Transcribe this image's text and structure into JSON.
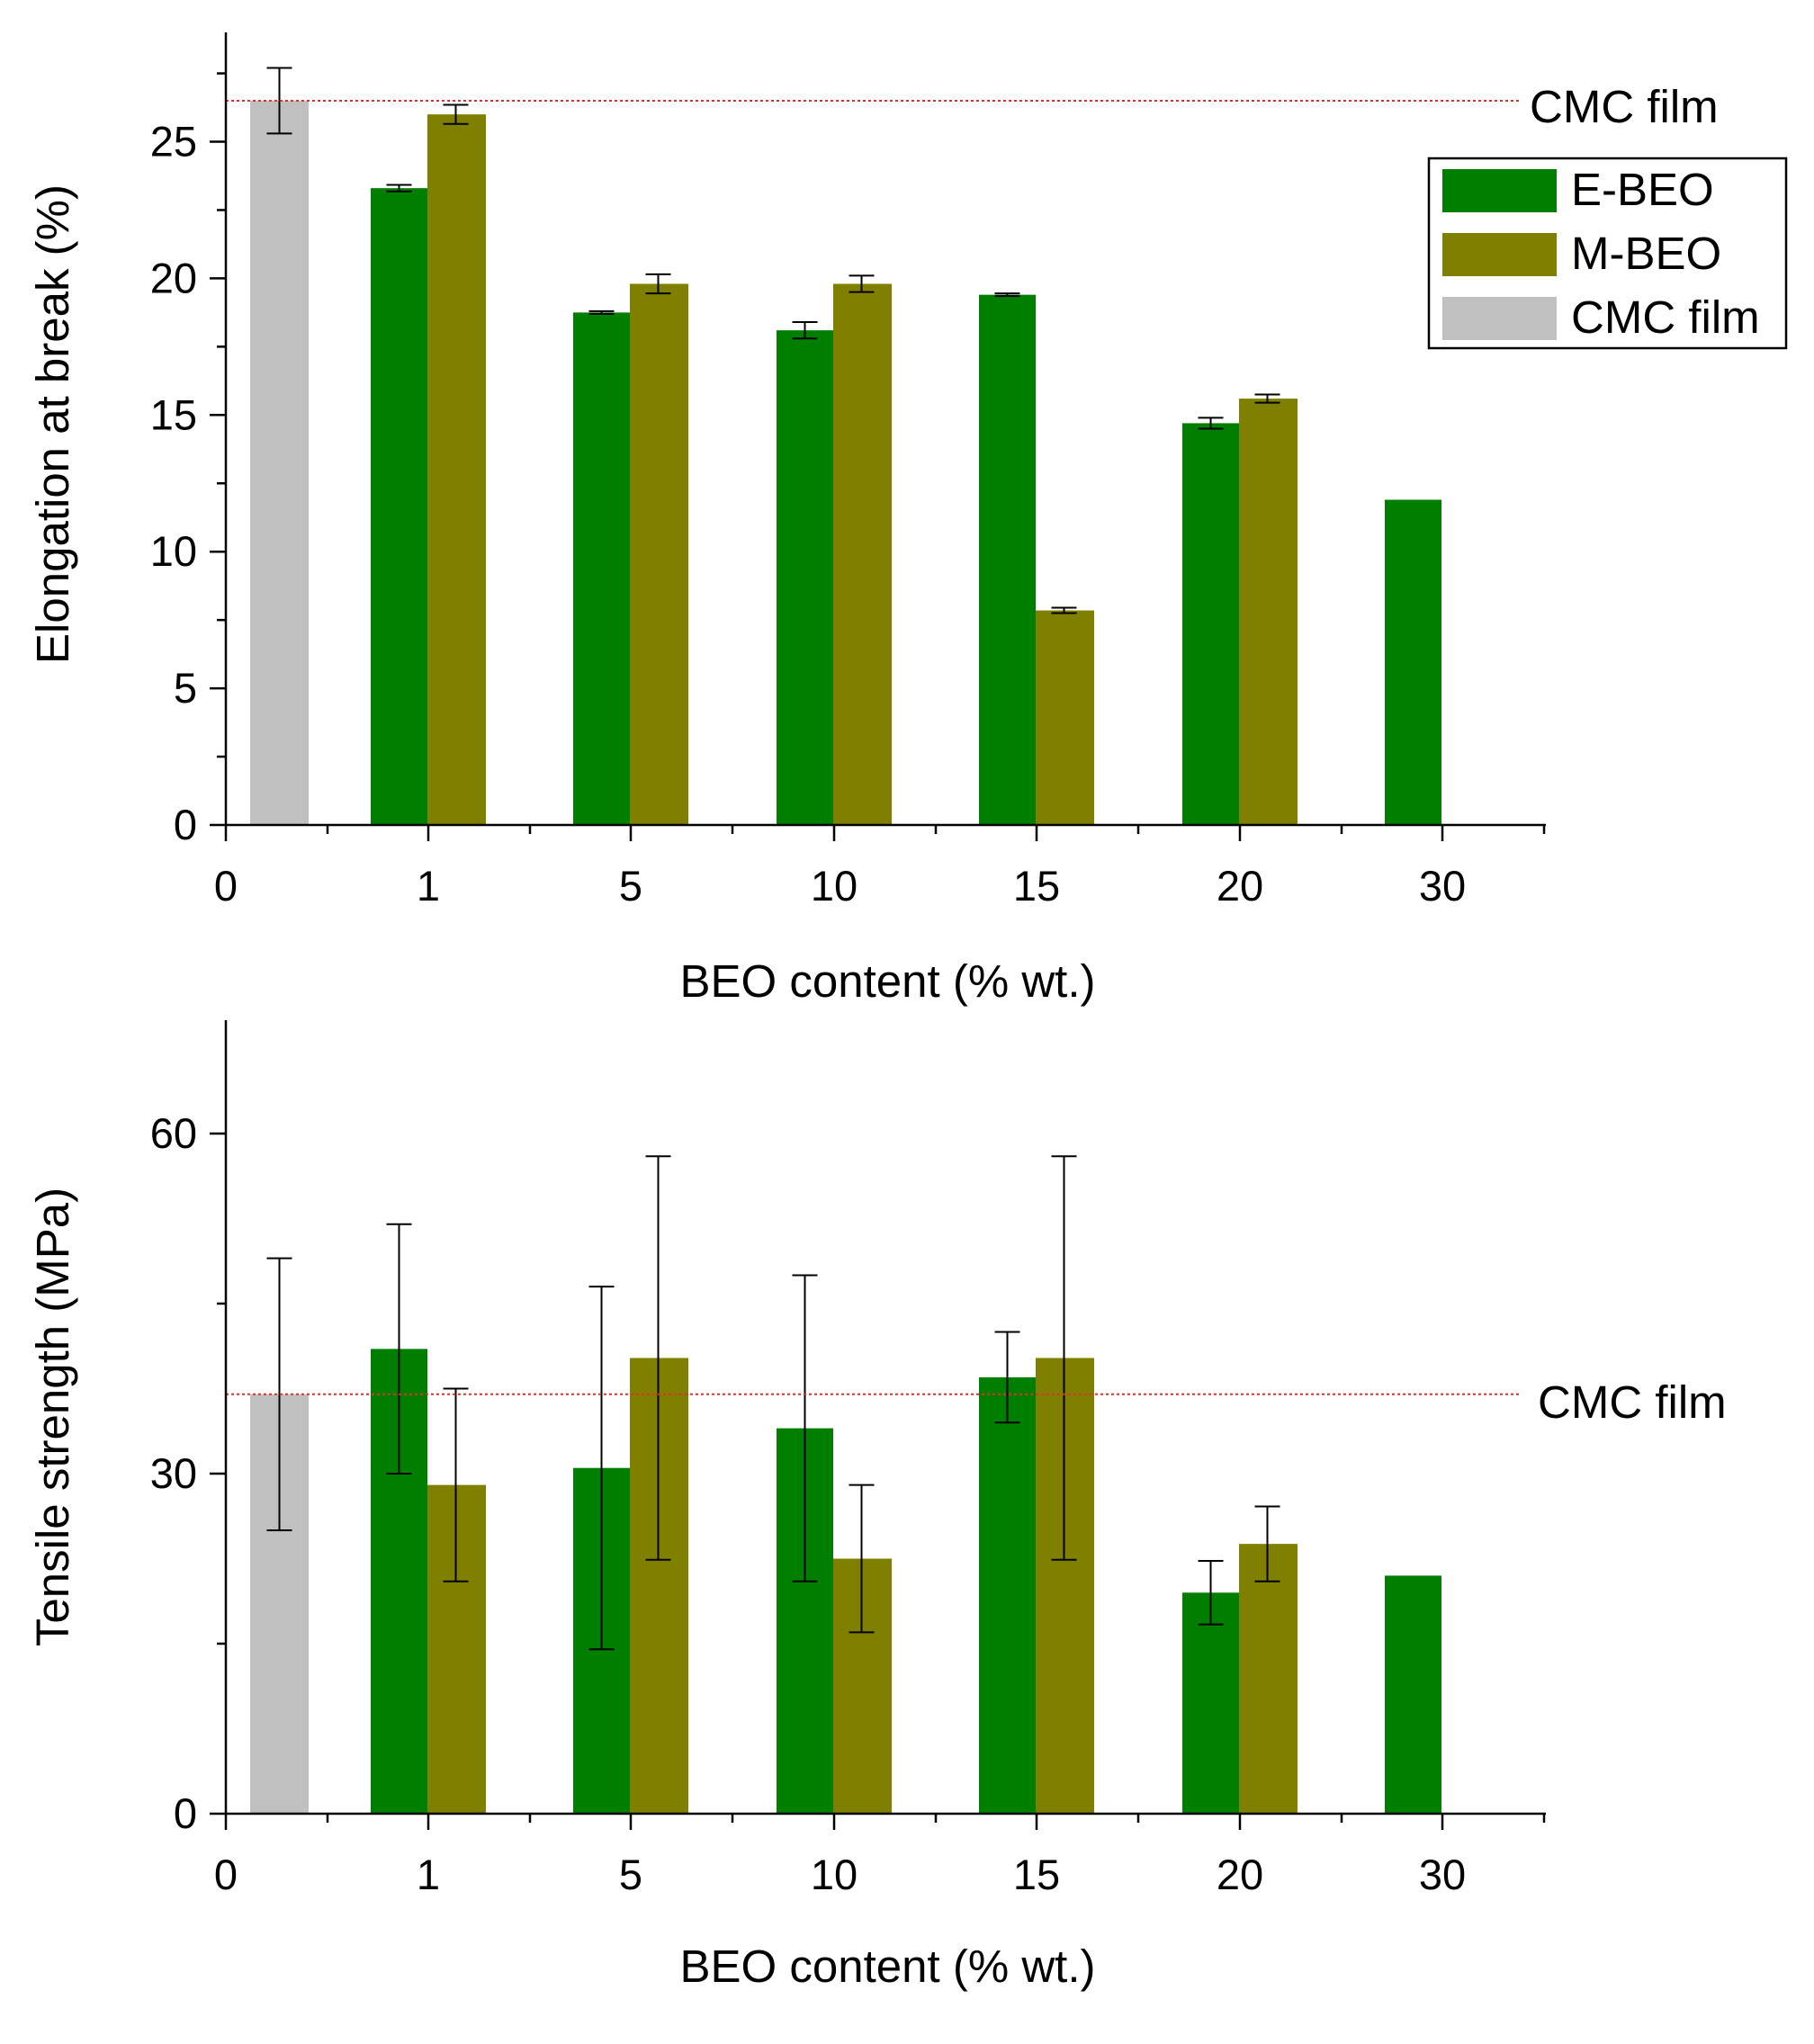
{
  "chart_data": [
    {
      "type": "bar",
      "id": "elongation",
      "xlabel": "BEO content (% wt.)",
      "ylabel": "Elongation at break (%)",
      "ylim": [
        0,
        29
      ],
      "yticks": [
        0,
        5,
        10,
        15,
        20,
        25
      ],
      "x_tick_labels": [
        "0",
        "1",
        "5",
        "10",
        "15",
        "20",
        "30"
      ],
      "control": {
        "name": "CMC film",
        "value": 26.5,
        "error": 1.2,
        "color": "#c0c0c0"
      },
      "reference_line": {
        "label": "CMC film",
        "value": 26.5,
        "color": "#e0302a"
      },
      "categories": [
        "1",
        "5",
        "10",
        "15",
        "20",
        "30"
      ],
      "series": [
        {
          "name": "E-BEO",
          "color": "#007e00",
          "values": [
            23.3,
            18.75,
            18.1,
            19.4,
            14.7,
            11.9
          ],
          "errors": [
            0.12,
            0.05,
            0.3,
            0.05,
            0.2,
            null
          ]
        },
        {
          "name": "M-BEO",
          "color": "#808000",
          "values": [
            26.0,
            19.8,
            19.8,
            7.85,
            15.6,
            null
          ],
          "errors": [
            0.35,
            0.35,
            0.3,
            0.1,
            0.15,
            null
          ]
        }
      ],
      "legend": {
        "placement": "top-right",
        "items": [
          "E-BEO",
          "M-BEO",
          "CMC film"
        ]
      }
    },
    {
      "type": "bar",
      "id": "tensile",
      "xlabel": "BEO content (% wt.)",
      "ylabel": "Tensile strength (MPa)",
      "ylim": [
        0,
        70
      ],
      "yticks": [
        0,
        30,
        60
      ],
      "minor_yticks": [
        15,
        45
      ],
      "x_tick_labels": [
        "0",
        "1",
        "5",
        "10",
        "15",
        "20",
        "30"
      ],
      "control": {
        "name": "CMC film",
        "value": 37,
        "error": 12,
        "color": "#c0c0c0"
      },
      "reference_line": {
        "label": "CMC film",
        "value": 37,
        "color": "#e0302a"
      },
      "categories": [
        "1",
        "5",
        "10",
        "15",
        "20",
        "30"
      ],
      "series": [
        {
          "name": "E-BEO",
          "color": "#007e00",
          "values": [
            41,
            30.5,
            34,
            38.5,
            19.5,
            21
          ],
          "errors": [
            11,
            16,
            13.5,
            4,
            2.8,
            null
          ]
        },
        {
          "name": "M-BEO",
          "color": "#808000",
          "values": [
            29,
            40.2,
            22.5,
            40.2,
            23.8,
            null
          ],
          "errors": [
            8.5,
            17.8,
            6.5,
            17.8,
            3.3,
            null
          ]
        }
      ]
    }
  ]
}
